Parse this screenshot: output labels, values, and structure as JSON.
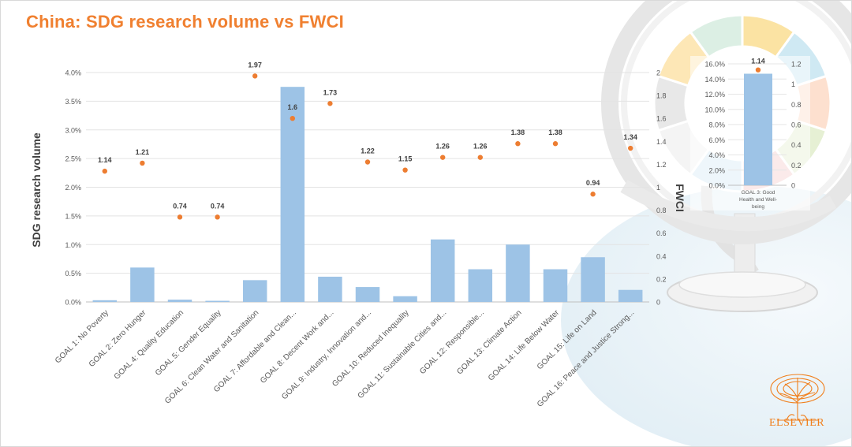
{
  "title": "China: SDG research volume vs FWCI",
  "chart_data": {
    "type": "bar",
    "title": "China: SDG research volume vs FWCI",
    "ylabel": "SDG research volume",
    "y2label": "FWCI",
    "ylim": [
      0,
      4.0
    ],
    "y2lim": [
      0,
      2
    ],
    "yticks": [
      "0.0%",
      "0.5%",
      "1.0%",
      "1.5%",
      "2.0%",
      "2.5%",
      "3.0%",
      "3.5%",
      "4.0%"
    ],
    "y2ticks": [
      "0",
      "0.2",
      "0.4",
      "0.6",
      "0.8",
      "1",
      "1.2",
      "1.4",
      "1.6",
      "1.8",
      "2"
    ],
    "categories": [
      "GOAL 1: No Poverty",
      "GOAL 2: Zero Hunger",
      "GOAL 4: Quality Education",
      "GOAL 5: Gender Equality",
      "GOAL 6: Clean Water and Sanitation",
      "GOAL 7: Affordable and Clean...",
      "GOAL 8: Decent Work and...",
      "GOAL 9: Industry, Innovation and...",
      "GOAL 10: Reduced Inequality",
      "GOAL 11: Sustainable Cities and...",
      "GOAL 12: Responsible...",
      "GOAL 13: Climate Action",
      "GOAL 14: Life Below Water",
      "GOAL 15: Life on Land",
      "GOAL 16: Peace and Justice Strong..."
    ],
    "series": [
      {
        "name": "SDG research volume",
        "axis": "left",
        "type": "bar",
        "color": "#9dc3e6",
        "values": [
          0.03,
          0.6,
          0.04,
          0.02,
          0.38,
          3.75,
          0.44,
          0.26,
          0.1,
          1.09,
          0.57,
          1.0,
          0.57,
          0.78,
          0.21
        ]
      },
      {
        "name": "FWCI",
        "axis": "right",
        "type": "scatter",
        "color": "#ed7d31",
        "values": [
          1.14,
          1.21,
          0.74,
          0.74,
          1.97,
          1.6,
          1.73,
          1.22,
          1.15,
          1.26,
          1.26,
          1.38,
          1.38,
          0.94,
          1.34
        ],
        "labels": [
          "1.14",
          "1.21",
          "0.74",
          "0.74",
          "1.97",
          "1.6",
          "1.73",
          "1.22",
          "1.15",
          "1.26",
          "1.26",
          "1.38",
          "1.38",
          "0.94",
          "1.34"
        ]
      }
    ],
    "inset": {
      "type": "bar",
      "category": "GOAL 3: Good Health and Well-being",
      "category_lines": [
        "GOAL 3: Good",
        "Health and Well-",
        "being"
      ],
      "ylim": [
        0,
        16.0
      ],
      "y2lim": [
        0,
        1.2
      ],
      "yticks": [
        "0.0%",
        "2.0%",
        "4.0%",
        "6.0%",
        "8.0%",
        "10.0%",
        "12.0%",
        "14.0%",
        "16.0%"
      ],
      "y2ticks": [
        "0",
        "0.2",
        "0.4",
        "0.6",
        "0.8",
        "1",
        "1.2"
      ],
      "volume": 14.7,
      "fwci": 1.14,
      "fwci_label": "1.14"
    }
  },
  "brand": {
    "name": "ELSEVIER",
    "title_color": "#f08030",
    "accent": "#f07f1c"
  }
}
